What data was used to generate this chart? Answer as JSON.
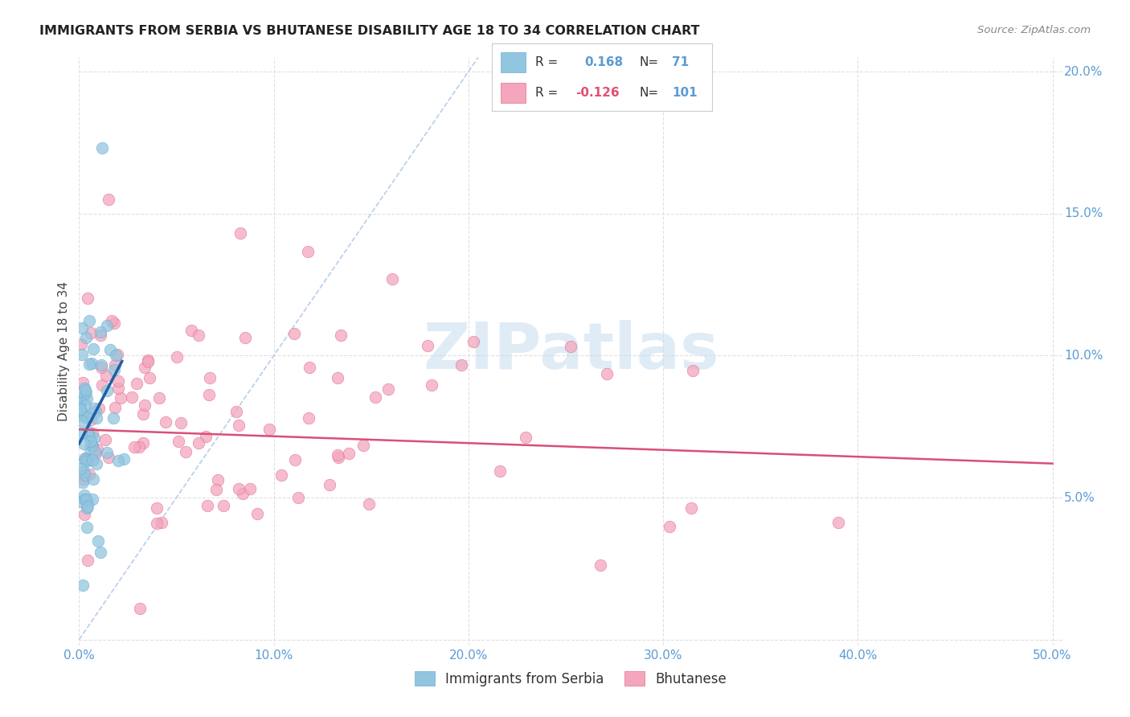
{
  "title": "IMMIGRANTS FROM SERBIA VS BHUTANESE DISABILITY AGE 18 TO 34 CORRELATION CHART",
  "source": "Source: ZipAtlas.com",
  "ylabel": "Disability Age 18 to 34",
  "xlim": [
    0.0,
    0.505
  ],
  "ylim": [
    -0.002,
    0.205
  ],
  "xticks": [
    0.0,
    0.1,
    0.2,
    0.3,
    0.4,
    0.5
  ],
  "yticks": [
    0.0,
    0.05,
    0.1,
    0.15,
    0.2
  ],
  "xticklabels": [
    "0.0%",
    "10.0%",
    "20.0%",
    "30.0%",
    "40.0%",
    "50.0%"
  ],
  "yticklabels_right": [
    "",
    "5.0%",
    "10.0%",
    "15.0%",
    "20.0%"
  ],
  "serbia_color": "#92c5de",
  "bhutanese_color": "#f4a6bd",
  "serbia_edge_color": "#6baed6",
  "bhutanese_edge_color": "#e07090",
  "serbia_trend_color": "#1f5fa6",
  "bhutanese_trend_color": "#d94f76",
  "diag_color": "#b0c8e8",
  "watermark": "ZIPatlas",
  "watermark_color": "#c5ddf0",
  "grid_color": "#e0e0e0",
  "tick_color": "#5b9bd5",
  "title_color": "#222222",
  "source_color": "#888888",
  "ylabel_color": "#444444",
  "serbia_R": 0.168,
  "serbia_N": 71,
  "bhutanese_R": -0.126,
  "bhutanese_N": 101,
  "serbia_trend_x": [
    0.0,
    0.022
  ],
  "serbia_trend_y": [
    0.069,
    0.098
  ],
  "bhutanese_trend_x": [
    0.0,
    0.5
  ],
  "bhutanese_trend_y": [
    0.074,
    0.062
  ]
}
